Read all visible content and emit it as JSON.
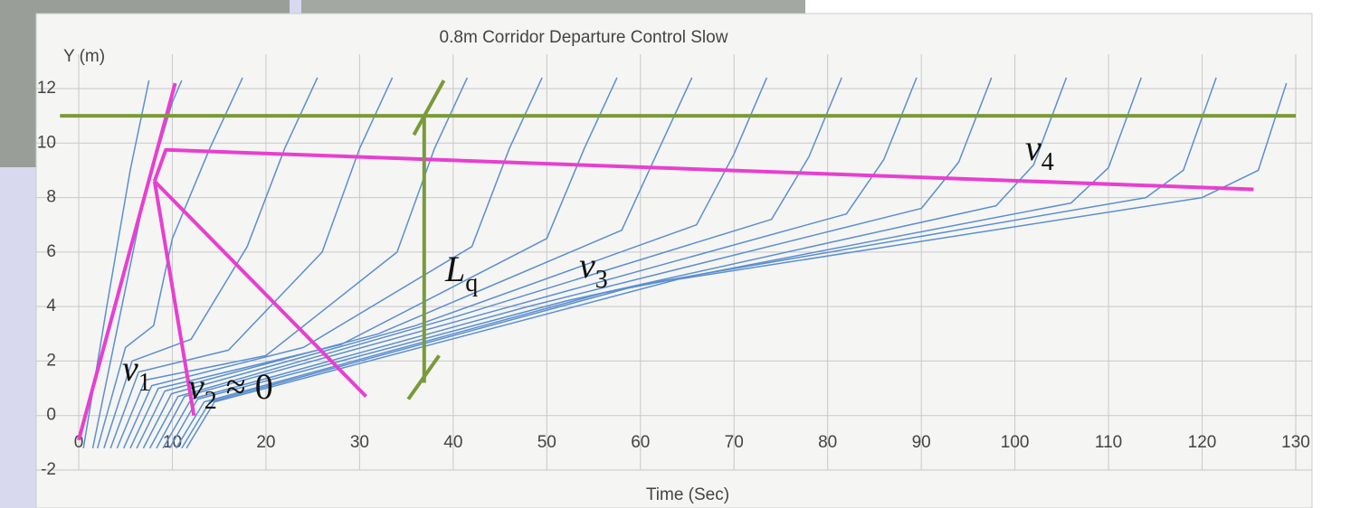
{
  "chart_data": {
    "type": "line",
    "title": "0.8m Corridor Departure Control Slow",
    "y_label": "Y (m)",
    "x_label": "Time (Sec)",
    "xlim": [
      0,
      130
    ],
    "xticks": [
      0,
      10,
      20,
      30,
      40,
      50,
      60,
      70,
      80,
      90,
      100,
      110,
      120,
      130
    ],
    "ylim": [
      -2,
      12
    ],
    "yticks": [
      -2,
      0,
      2,
      4,
      6,
      8,
      10,
      12
    ],
    "grid": true,
    "line_color": "#5b8fd0",
    "series": [
      {
        "x": [
          0.5,
          3,
          5.5,
          7.5
        ],
        "values": [
          -1.2,
          4,
          9,
          12.3
        ]
      },
      {
        "x": [
          1.5,
          4,
          7,
          10,
          11
        ],
        "values": [
          -1.2,
          3,
          8,
          11.5,
          12.3
        ]
      },
      {
        "x": [
          2,
          5,
          8,
          10,
          14,
          17.5
        ],
        "values": [
          -1.2,
          2.5,
          3.3,
          6.5,
          9.8,
          12.4
        ]
      },
      {
        "x": [
          2.7,
          5.7,
          12,
          18,
          22,
          25.5
        ],
        "values": [
          -1.2,
          2,
          2.8,
          6.2,
          9.8,
          12.4
        ]
      },
      {
        "x": [
          3.4,
          6.4,
          16,
          26,
          30,
          33.5
        ],
        "values": [
          -1.2,
          1.6,
          2.4,
          6,
          9.8,
          12.4
        ]
      },
      {
        "x": [
          4.1,
          7.1,
          20,
          34,
          38,
          41.5
        ],
        "values": [
          -1.2,
          1.3,
          2.2,
          6,
          9.8,
          12.4
        ]
      },
      {
        "x": [
          4.8,
          7.8,
          24,
          42,
          46,
          49.5
        ],
        "values": [
          -1.2,
          1.1,
          2.5,
          6.2,
          9.8,
          12.4
        ]
      },
      {
        "x": [
          5.5,
          8.5,
          28,
          50,
          54,
          57.5
        ],
        "values": [
          -1.2,
          1,
          2.6,
          6.5,
          9.8,
          12.4
        ]
      },
      {
        "x": [
          6.2,
          9.2,
          32,
          58,
          62,
          65.5
        ],
        "values": [
          -1.2,
          0.9,
          3,
          6.8,
          9.8,
          12.4
        ]
      },
      {
        "x": [
          6.9,
          9.9,
          36,
          66,
          70,
          73.5
        ],
        "values": [
          -1.2,
          0.8,
          3.3,
          7,
          9.6,
          12.4
        ]
      },
      {
        "x": [
          7.6,
          10.6,
          40,
          74,
          78,
          81.5
        ],
        "values": [
          -1.2,
          0.7,
          3.6,
          7.2,
          9.5,
          12.4
        ]
      },
      {
        "x": [
          8.3,
          11.3,
          44,
          82,
          86,
          89.5
        ],
        "values": [
          -1.2,
          0.7,
          3.8,
          7.4,
          9.4,
          12.4
        ]
      },
      {
        "x": [
          9,
          12,
          48,
          90,
          94,
          97.5
        ],
        "values": [
          -1.2,
          0.6,
          4,
          7.6,
          9.3,
          12.4
        ]
      },
      {
        "x": [
          9.7,
          12.7,
          52,
          98,
          102,
          105.5
        ],
        "values": [
          -1.2,
          0.6,
          4.2,
          7.7,
          9.2,
          12.4
        ]
      },
      {
        "x": [
          10.4,
          13.4,
          56,
          106,
          110,
          113.5
        ],
        "values": [
          -1.2,
          0.5,
          4.5,
          7.8,
          9.1,
          12.4
        ]
      },
      {
        "x": [
          11,
          14,
          60,
          114,
          118,
          121.5
        ],
        "values": [
          -1.2,
          0.5,
          4.8,
          8,
          9,
          12.4
        ]
      },
      {
        "x": [
          11.5,
          14.5,
          64,
          120,
          126,
          129
        ],
        "values": [
          -1.2,
          0.5,
          5,
          8,
          9,
          12.2
        ]
      }
    ],
    "reference_lines": [
      {
        "color": "#e83fd0",
        "x": [
          0,
          10.3
        ],
        "values": [
          -0.9,
          12.2
        ]
      },
      {
        "color": "#e83fd0",
        "x": [
          8.1,
          12.3
        ],
        "values": [
          8.6,
          0
        ]
      },
      {
        "color": "#e83fd0",
        "x": [
          8.1,
          30.7
        ],
        "values": [
          8.6,
          0.7
        ]
      },
      {
        "color": "#e83fd0",
        "x": [
          8.1,
          9.3,
          125.5
        ],
        "values": [
          8.6,
          9.75,
          8.3
        ]
      },
      {
        "color": "#7a9a3a",
        "x": [
          -2,
          130
        ],
        "values": [
          11,
          11
        ]
      },
      {
        "color": "#7a9a3a",
        "x": [
          36.9,
          36.9
        ],
        "values": [
          11,
          1.2
        ]
      },
      {
        "color": "#7a9a3a",
        "x": [
          35.2,
          38.5
        ],
        "values": [
          0.6,
          2.2
        ]
      },
      {
        "color": "#7a9a3a",
        "x": [
          35.8,
          39
        ],
        "values": [
          10.3,
          12.3
        ]
      }
    ],
    "annotations": [
      {
        "text": "v",
        "subscript": "1"
      },
      {
        "text": "v",
        "subscript": "2",
        "suffix": " ≈ 0"
      },
      {
        "text": "L",
        "subscript": "q"
      },
      {
        "text": "v",
        "subscript": "3"
      },
      {
        "text": "v",
        "subscript": "4"
      }
    ]
  }
}
